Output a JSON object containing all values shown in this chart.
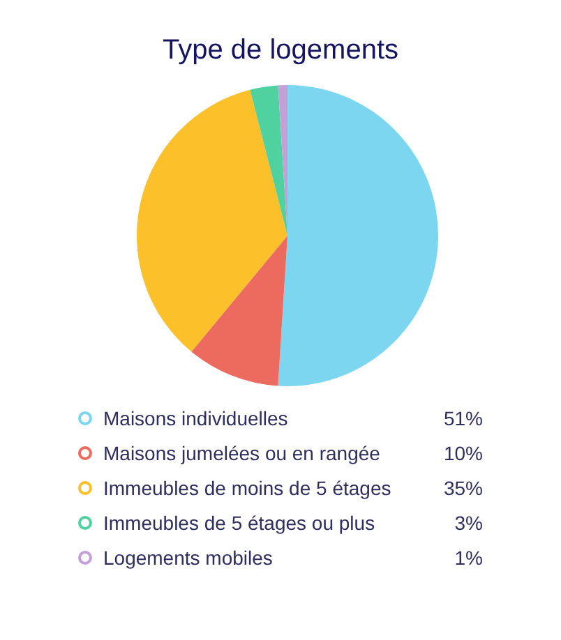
{
  "chart_data": {
    "type": "pie",
    "title": "Type de logements",
    "categories": [
      "Maisons individuelles",
      "Maisons jumelées ou en rangée",
      "Immeubles de moins de 5 étages",
      "Immeubles de 5 étages ou plus",
      "Logements mobiles"
    ],
    "values": [
      51,
      10,
      35,
      3,
      1
    ],
    "value_labels": [
      "51%",
      "10%",
      "35%",
      "3%",
      "1%"
    ],
    "colors": [
      "#7dd6ef",
      "#ec6a5e",
      "#fcc02a",
      "#4fd1a0",
      "#c3a0d8"
    ],
    "legend": "bottom"
  }
}
